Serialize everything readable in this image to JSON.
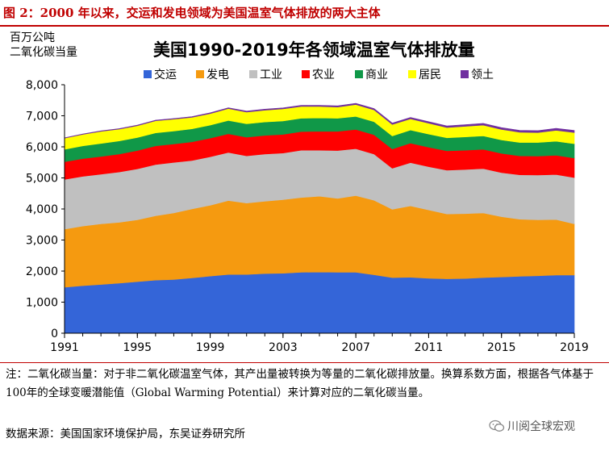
{
  "figure_title": "图 2：2000 年以来，交运和发电领域为美国温室气体排放的两大主体",
  "note": "注：二氧化碳当量：对于非二氧化碳温室气体，其产出量被转换为等量的二氧化碳排放量。换算系数方面，根据各气体基于100年的全球变暖潜能值（Global Warming Potential）来计算对应的二氧化碳当量。",
  "source": "数据来源：美国国家环境保护局，东吴证券研究所",
  "watermark": "川阅全球宏观",
  "chart_data": {
    "type": "area",
    "stacked": true,
    "title": "美国1990-2019年各领域温室气体排放量",
    "ylabel_lines": [
      "百万公吨",
      "二氧化碳当量"
    ],
    "ylabel": "百万公吨二氧化碳当量",
    "x": [
      1991,
      1992,
      1993,
      1994,
      1995,
      1996,
      1997,
      1998,
      1999,
      2000,
      2001,
      2002,
      2003,
      2004,
      2005,
      2006,
      2007,
      2008,
      2009,
      2010,
      2011,
      2012,
      2013,
      2014,
      2015,
      2016,
      2017,
      2018,
      2019
    ],
    "x_ticks": [
      "1991",
      "1995",
      "1999",
      "2003",
      "2007",
      "2011",
      "2015",
      "2019"
    ],
    "ylim": [
      0,
      8000
    ],
    "y_ticks": [
      "0",
      "1,000",
      "2,000",
      "3,000",
      "4,000",
      "5,000",
      "6,000",
      "7,000",
      "8,000"
    ],
    "grid": false,
    "legend_position": "top",
    "series": [
      {
        "name": "交运",
        "color": "#3465d8",
        "values": [
          1480,
          1530,
          1570,
          1610,
          1660,
          1710,
          1730,
          1780,
          1840,
          1890,
          1890,
          1920,
          1930,
          1960,
          1970,
          1960,
          1960,
          1880,
          1790,
          1800,
          1770,
          1750,
          1760,
          1790,
          1810,
          1830,
          1850,
          1870,
          1870
        ]
      },
      {
        "name": "发电",
        "color": "#f59a10",
        "values": [
          1870,
          1920,
          1950,
          1960,
          1990,
          2070,
          2140,
          2220,
          2280,
          2380,
          2300,
          2330,
          2370,
          2410,
          2440,
          2380,
          2470,
          2400,
          2200,
          2300,
          2200,
          2090,
          2090,
          2080,
          1940,
          1840,
          1800,
          1790,
          1650
        ]
      },
      {
        "name": "工业",
        "color": "#c0c0c0",
        "values": [
          1600,
          1600,
          1600,
          1620,
          1640,
          1650,
          1630,
          1560,
          1560,
          1550,
          1520,
          1520,
          1500,
          1520,
          1480,
          1540,
          1510,
          1490,
          1320,
          1390,
          1390,
          1410,
          1420,
          1430,
          1420,
          1430,
          1440,
          1450,
          1490
        ]
      },
      {
        "name": "农业",
        "color": "#ff0000",
        "values": [
          570,
          570,
          570,
          580,
          590,
          600,
          590,
          600,
          600,
          600,
          600,
          600,
          600,
          600,
          610,
          620,
          620,
          620,
          620,
          630,
          630,
          620,
          620,
          620,
          620,
          610,
          610,
          620,
          630
        ]
      },
      {
        "name": "商业",
        "color": "#109848",
        "values": [
          400,
          410,
          420,
          420,
          420,
          420,
          420,
          420,
          420,
          430,
          430,
          430,
          430,
          430,
          430,
          420,
          420,
          420,
          420,
          420,
          420,
          420,
          430,
          430,
          430,
          430,
          440,
          450,
          460
        ]
      },
      {
        "name": "居民",
        "color": "#ffff00",
        "values": [
          360,
          370,
          390,
          380,
          380,
          390,
          380,
          370,
          370,
          380,
          380,
          380,
          390,
          380,
          370,
          360,
          380,
          380,
          370,
          360,
          350,
          330,
          340,
          350,
          340,
          330,
          320,
          350,
          360
        ]
      },
      {
        "name": "领土",
        "color": "#7030a0",
        "values": [
          10,
          12,
          14,
          16,
          18,
          20,
          22,
          24,
          26,
          28,
          30,
          32,
          34,
          36,
          38,
          40,
          42,
          44,
          46,
          48,
          50,
          52,
          54,
          56,
          58,
          60,
          62,
          64,
          66
        ]
      }
    ]
  }
}
